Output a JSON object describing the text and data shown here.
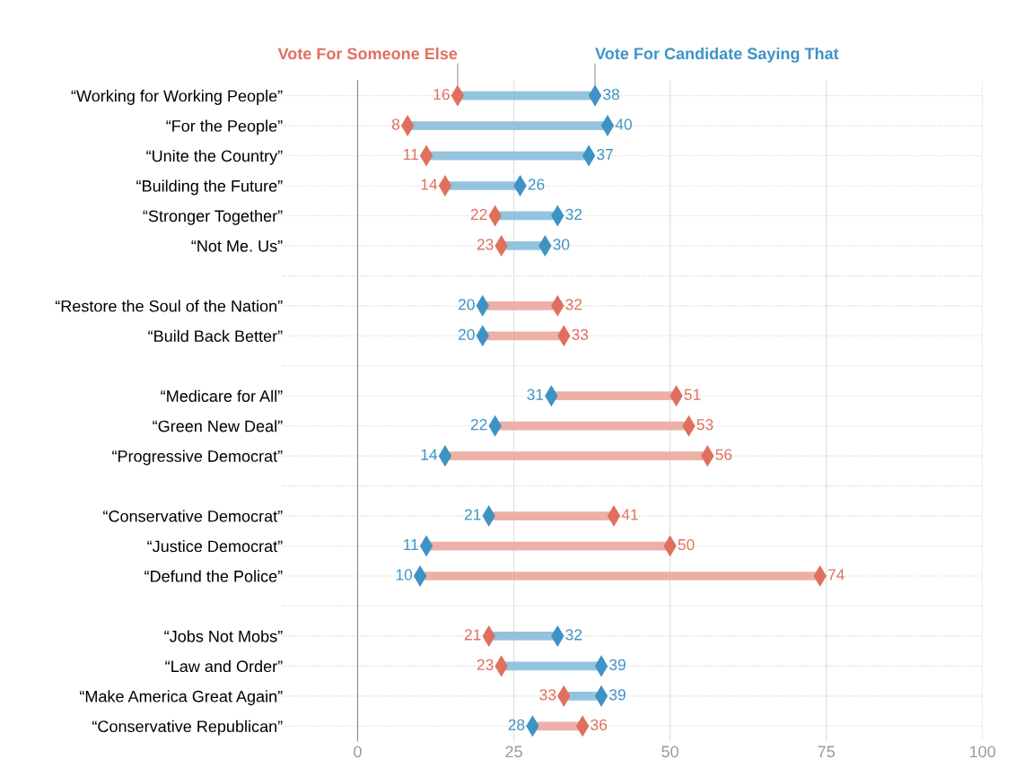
{
  "chart_data": {
    "type": "scatter",
    "orientation": "horizontal",
    "categories": [
      "“Working for Working People”",
      "“For the People”",
      "“Unite the Country”",
      "“Building the Future”",
      "“Stronger Together”",
      "“Not Me. Us”",
      null,
      "“Restore the Soul of the Nation”",
      "“Build Back Better”",
      null,
      "“Medicare for All”",
      "“Green New Deal”",
      "“Progressive Democrat”",
      null,
      "“Conservative Democrat”",
      "“Justice Democrat”",
      "“Defund the Police”",
      null,
      "“Jobs Not Mobs”",
      "“Law and Order”",
      "“Make America Great Again”",
      "“Conservative Republican”"
    ],
    "series": [
      {
        "name": "Vote For Someone Else",
        "color": "#e0705e",
        "values": [
          16,
          8,
          11,
          14,
          22,
          23,
          null,
          32,
          33,
          null,
          51,
          53,
          56,
          null,
          41,
          50,
          74,
          null,
          21,
          23,
          33,
          36
        ]
      },
      {
        "name": "Vote For Candidate Saying That",
        "color": "#3d93c4",
        "values": [
          38,
          40,
          37,
          26,
          32,
          30,
          null,
          20,
          20,
          null,
          31,
          22,
          14,
          null,
          21,
          11,
          10,
          null,
          32,
          39,
          39,
          28
        ]
      }
    ],
    "marker": "diamond",
    "xlim": [
      0,
      100
    ],
    "xticks": [
      0,
      25,
      50,
      75,
      100
    ],
    "grid": true,
    "data_labels": true
  }
}
